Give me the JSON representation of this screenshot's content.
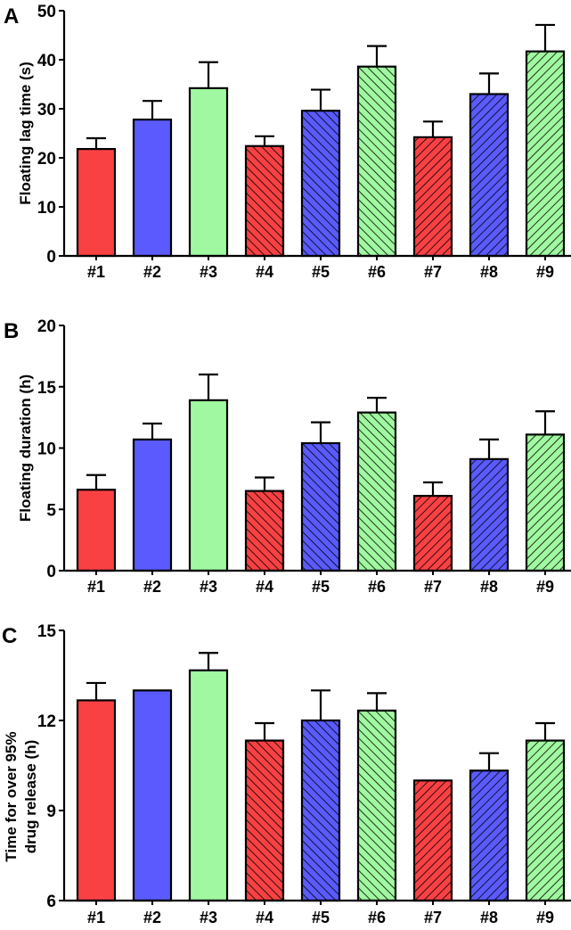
{
  "chart_data": [
    {
      "type": "bar",
      "panel_label": "A",
      "ylabel": "Floating lag time (s)",
      "ylim": [
        0,
        50
      ],
      "yticks": [
        "0",
        "10",
        "20",
        "30",
        "40",
        "50"
      ],
      "categories": [
        "#1",
        "#2",
        "#3",
        "#4",
        "#5",
        "#6",
        "#7",
        "#8",
        "#9"
      ],
      "values": [
        21.8,
        27.8,
        34.2,
        22.4,
        29.6,
        38.6,
        24.2,
        33.0,
        41.7
      ],
      "errors": [
        2.2,
        3.8,
        5.3,
        2.0,
        4.3,
        4.2,
        3.2,
        4.2,
        5.4
      ]
    },
    {
      "type": "bar",
      "panel_label": "B",
      "ylabel": "Floating duration (h)",
      "ylim": [
        0,
        20
      ],
      "yticks": [
        "0",
        "5",
        "10",
        "15",
        "20"
      ],
      "categories": [
        "#1",
        "#2",
        "#3",
        "#4",
        "#5",
        "#6",
        "#7",
        "#8",
        "#9"
      ],
      "values": [
        6.6,
        10.7,
        13.9,
        6.5,
        10.4,
        12.9,
        6.1,
        9.1,
        11.1
      ],
      "errors": [
        1.2,
        1.3,
        2.1,
        1.1,
        1.7,
        1.2,
        1.1,
        1.6,
        1.9
      ]
    },
    {
      "type": "bar",
      "panel_label": "C",
      "ylabel": [
        "Time for over 95%",
        "drug release  (h)"
      ],
      "ylim": [
        6,
        15
      ],
      "yticks": [
        "6",
        "9",
        "12",
        "15"
      ],
      "categories": [
        "#1",
        "#2",
        "#3",
        "#4",
        "#5",
        "#6",
        "#7",
        "#8",
        "#9"
      ],
      "values": [
        12.67,
        13.0,
        13.67,
        11.33,
        12.0,
        12.33,
        10.0,
        10.33,
        11.33
      ],
      "errors": [
        0.58,
        0,
        0.58,
        0.58,
        1.0,
        0.58,
        0,
        0.58,
        0.58
      ]
    }
  ],
  "bar_styles": {
    "colors": [
      "#f94144",
      "#5a5aff",
      "#a0f9a0",
      "#f94144",
      "#5a5aff",
      "#a0f9a0",
      "#f94144",
      "#5a5aff",
      "#a0f9a0"
    ],
    "patterns": [
      "none",
      "none",
      "none",
      "back",
      "back",
      "back",
      "fwd",
      "fwd",
      "fwd"
    ]
  }
}
